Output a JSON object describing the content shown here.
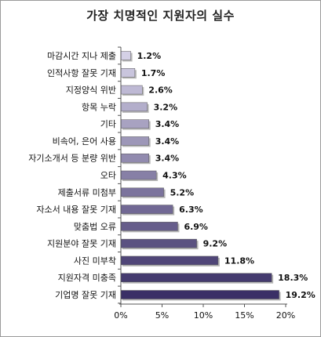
{
  "chart_data": {
    "type": "bar",
    "orientation": "horizontal",
    "title": "가장 치명적인 지원자의 실수",
    "categories": [
      "마감시간 지나 제출",
      "인적사항 잘못 기재",
      "지정양식 위반",
      "항목 누락",
      "기타",
      "비속어, 은어 사용",
      "자기소개서 등 분량 위반",
      "오타",
      "제출서류 미첨부",
      "자소서 내용 잘못 기재",
      "맞춤법 오류",
      "지원분야 잘못 기재",
      "사진 미부착",
      "지원자격 미충족",
      "기업명 잘못 기재"
    ],
    "values": [
      1.2,
      1.7,
      2.6,
      3.2,
      3.4,
      3.4,
      3.4,
      4.3,
      5.2,
      6.3,
      6.9,
      9.2,
      11.8,
      18.3,
      19.2
    ],
    "value_labels": [
      "1.2%",
      "1.7%",
      "2.6%",
      "3.2%",
      "3.4%",
      "3.4%",
      "3.4%",
      "4.3%",
      "5.2%",
      "6.3%",
      "6.9%",
      "9.2%",
      "11.8%",
      "18.3%",
      "19.2%"
    ],
    "xlim": [
      0,
      20
    ],
    "xticks": [
      "0%",
      "5%",
      "10%",
      "15%",
      "20%"
    ],
    "xlabel": "",
    "ylabel": "",
    "grid": false,
    "legend": "none",
    "bar_color_light": "#d4d0e6",
    "bar_color_dark": "#3a2f66"
  }
}
